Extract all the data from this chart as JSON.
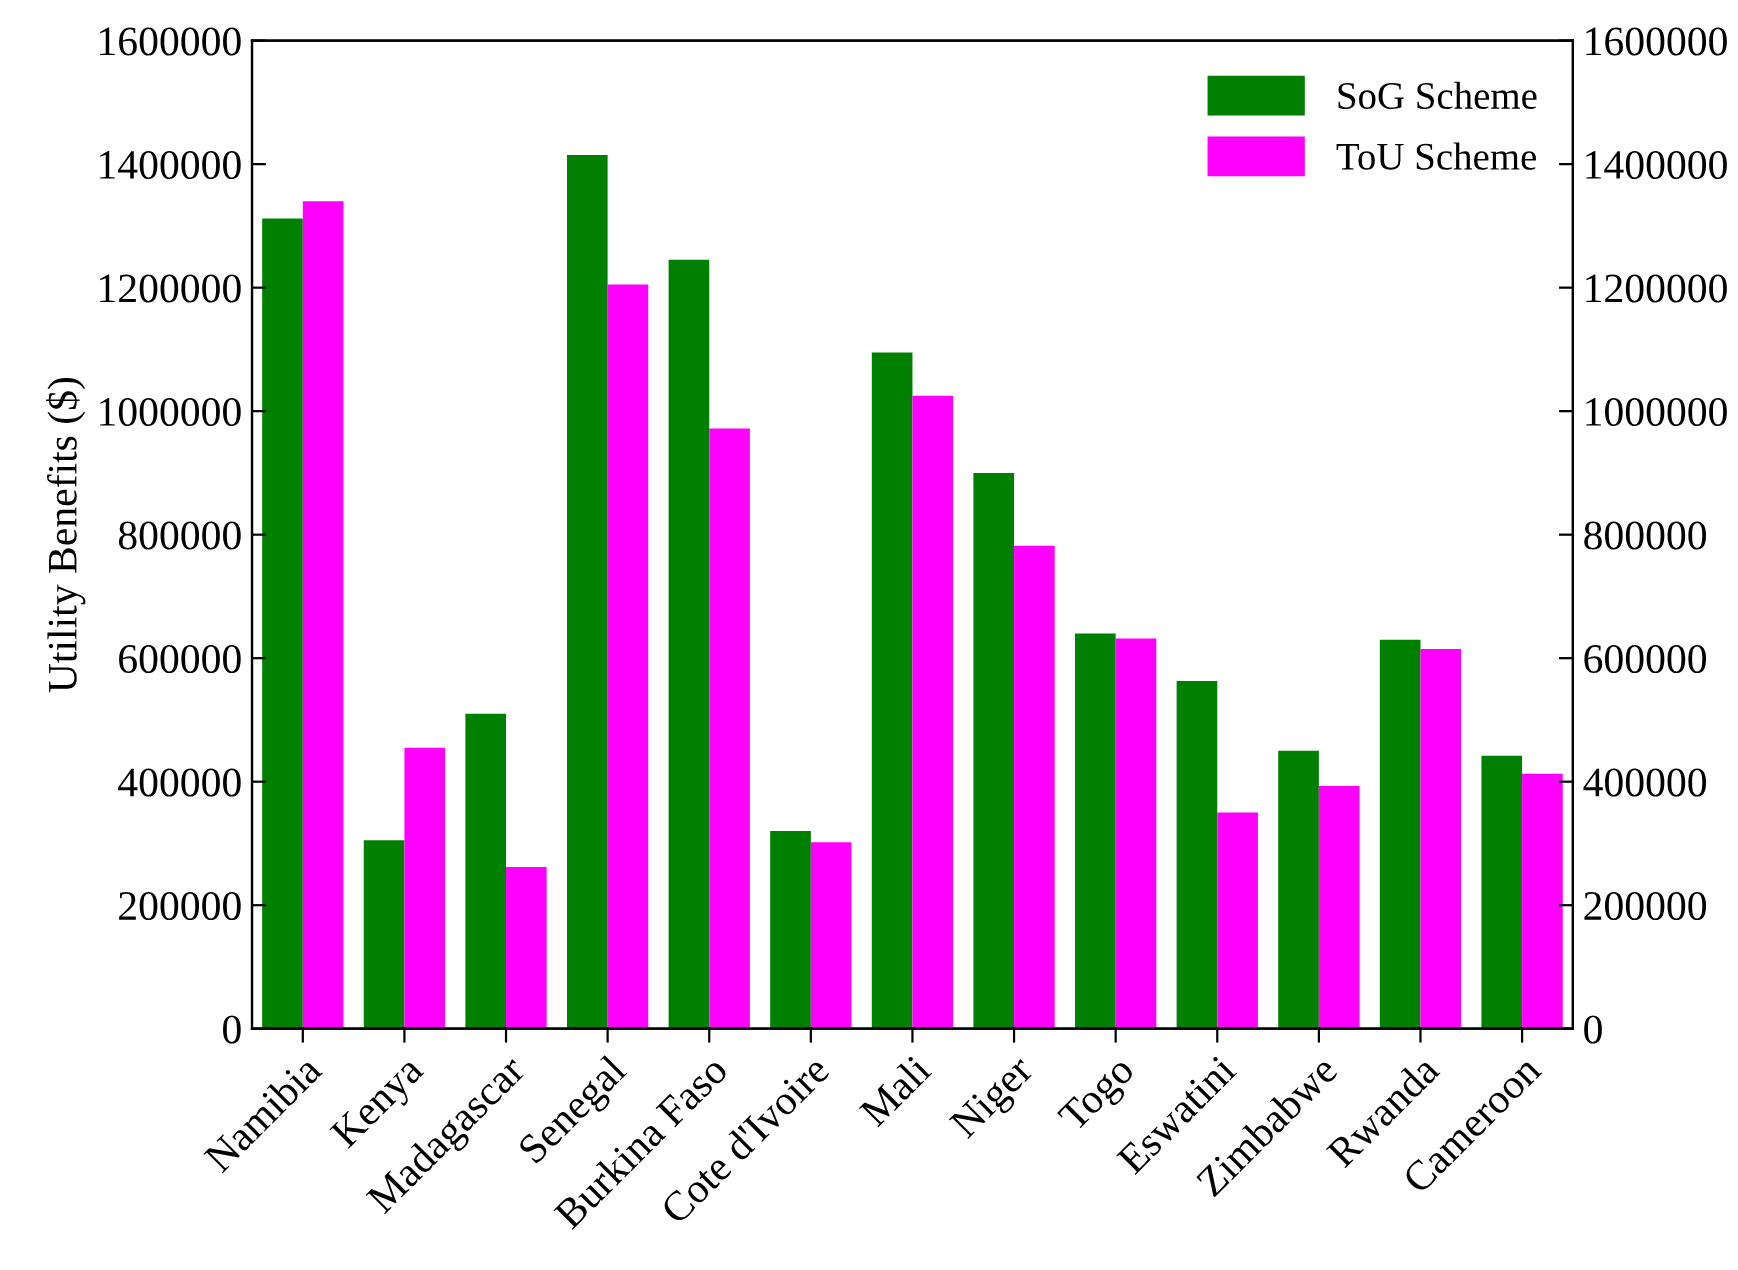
{
  "chart_data": {
    "type": "bar",
    "ylabel": "Utility Benefits ($)",
    "categories": [
      "Namibia",
      "Kenya",
      "Madagascar",
      "Senegal",
      "Burkina Faso",
      "Cote d'Ivoire",
      "Mali",
      "Niger",
      "Togo",
      "Eswatini",
      "Zimbabwe",
      "Rwanda",
      "Cameroon"
    ],
    "series": [
      {
        "name": "SoG Scheme",
        "color": "#008000",
        "values": [
          1312000,
          305000,
          510000,
          1415000,
          1245000,
          320000,
          1095000,
          900000,
          640000,
          563000,
          450000,
          630000,
          442000
        ]
      },
      {
        "name": "ToU Scheme",
        "color": "#ff00ff",
        "values": [
          1340000,
          455000,
          262000,
          1205000,
          972000,
          302000,
          1025000,
          782000,
          632000,
          350000,
          393000,
          615000,
          413000
        ]
      }
    ],
    "ylim": [
      0,
      1600000
    ],
    "yticks": [
      0,
      200000,
      400000,
      600000,
      800000,
      1000000,
      1200000,
      1400000,
      1600000
    ],
    "y2lim": [
      0,
      1600000
    ],
    "y2ticks": [
      0,
      200000,
      400000,
      600000,
      800000,
      1000000,
      1200000,
      1400000,
      1600000
    ],
    "legend": "top right",
    "grid": false
  }
}
